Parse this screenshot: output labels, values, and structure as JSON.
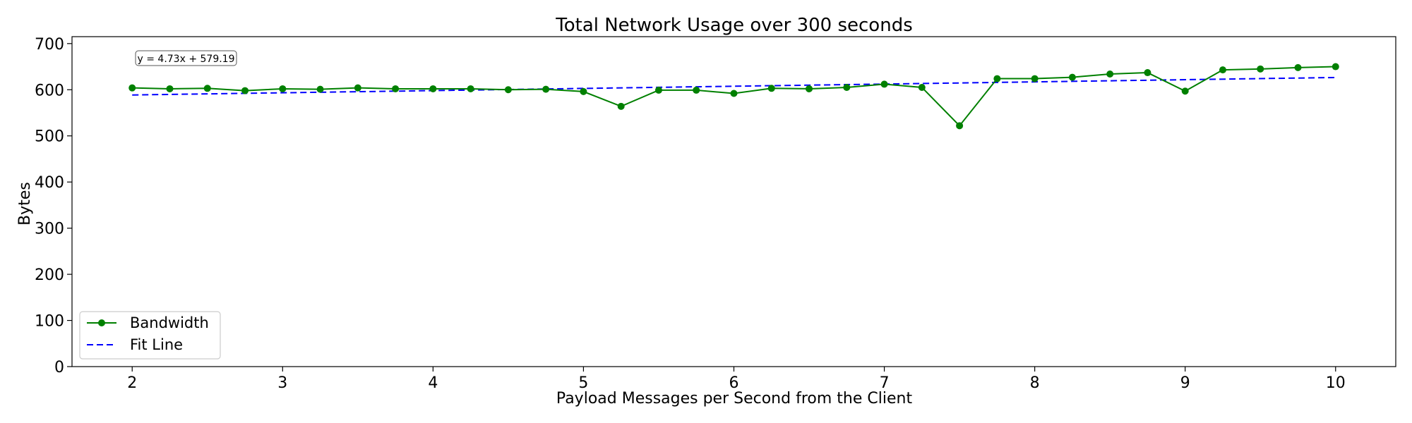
{
  "chart_data": {
    "type": "line",
    "title": "Total Network Usage over 300 seconds",
    "xlabel": "Payload Messages per Second from the Client",
    "ylabel": "Bytes",
    "xlim": [
      1.6,
      10.4
    ],
    "ylim": [
      0,
      715
    ],
    "xticks": [
      2,
      3,
      4,
      5,
      6,
      7,
      8,
      9,
      10
    ],
    "yticks": [
      0,
      100,
      200,
      300,
      400,
      500,
      600,
      700
    ],
    "grid": false,
    "legend_position": "lower-left",
    "x": [
      2,
      2.25,
      2.5,
      2.75,
      3,
      3.25,
      3.5,
      3.75,
      4,
      4.25,
      4.5,
      4.75,
      5,
      5.25,
      5.5,
      5.75,
      6,
      6.25,
      6.5,
      6.75,
      7,
      7.25,
      7.5,
      7.75,
      8,
      8.25,
      8.5,
      8.75,
      9,
      9.25,
      9.5,
      9.75,
      10
    ],
    "series": [
      {
        "name": "Bandwidth",
        "style": "solid-with-markers",
        "color": "#008000",
        "values": [
          604,
          602,
          603,
          598,
          602,
          601,
          604,
          602,
          602,
          602,
          600,
          601,
          596,
          564,
          599,
          599,
          592,
          603,
          602,
          605,
          612,
          605,
          522,
          624,
          624,
          627,
          634,
          637,
          597,
          643,
          645,
          648,
          650
        ]
      },
      {
        "name": "Fit Line",
        "style": "dashed",
        "color": "#0000ff",
        "equation": {
          "slope": 4.73,
          "intercept": 579.19
        }
      }
    ],
    "annotation": "y = 4.73x + 579.19"
  }
}
